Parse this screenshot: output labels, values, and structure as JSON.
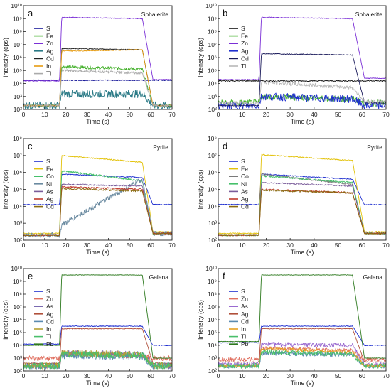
{
  "chart_data": [
    {
      "id": "a",
      "panel_label": "a",
      "mineral_label": "Sphalerite",
      "type": "line",
      "xlabel": "Time  (s)",
      "ylabel": "Intensity (cps)",
      "xlim": [
        0,
        70
      ],
      "ylim_exp": [
        2,
        10
      ],
      "y_scale": "log",
      "x_ticks": [
        "0",
        "10",
        "20",
        "30",
        "40",
        "50",
        "60",
        "70"
      ],
      "y_ticks": [
        "10²",
        "10³",
        "10⁴",
        "10⁵",
        "10⁶",
        "10⁷",
        "10⁸",
        "10⁹",
        "10¹⁰"
      ],
      "legend_position": "top-left",
      "series": [
        {
          "name": "S",
          "color": "#1a1a9a",
          "bg": 4.25,
          "plateau": 4.25,
          "end": 4.25,
          "tail": 4.25,
          "noise": 0.04
        },
        {
          "name": "Fe",
          "color": "#43b02a",
          "bg": 2.3,
          "plateau": 5.3,
          "end": 5.1,
          "tail": 2.3,
          "noise": 0.12
        },
        {
          "name": "Zn",
          "color": "#7b2fd6",
          "bg": 4.2,
          "plateau": 9.1,
          "end": 9.0,
          "tail": 4.3,
          "noise": 0.03
        },
        {
          "name": "Ag",
          "color": "#2a7a86",
          "bg": 2.3,
          "plateau": 3.2,
          "end": 3.2,
          "tail": 2.3,
          "noise": 0.3
        },
        {
          "name": "Cd",
          "color": "#222222",
          "bg": 2.3,
          "plateau": 6.7,
          "end": 6.6,
          "tail": 2.3,
          "noise": 0.03
        },
        {
          "name": "In",
          "color": "#e69b10",
          "bg": 2.3,
          "plateau": 6.5,
          "end": 6.6,
          "tail": 2.3,
          "noise": 0.04
        },
        {
          "name": "Tl",
          "color": "#aaaaaa",
          "bg": 2.3,
          "plateau": 5.0,
          "end": 4.8,
          "tail": 2.3,
          "noise": 0.1
        }
      ]
    },
    {
      "id": "b",
      "panel_label": "b",
      "mineral_label": "Sphalerite",
      "type": "line",
      "xlabel": "Time  (s)",
      "ylabel": "Intensity (cps)",
      "xlim": [
        0,
        70
      ],
      "ylim_exp": [
        2,
        10
      ],
      "y_scale": "log",
      "x_ticks": [
        "0",
        "10",
        "20",
        "30",
        "40",
        "50",
        "60",
        "70"
      ],
      "y_ticks": [
        "10²",
        "10³",
        "10⁴",
        "10⁵",
        "10⁶",
        "10⁷",
        "10⁸",
        "10⁹",
        "10¹⁰"
      ],
      "legend_position": "top-left",
      "series": [
        {
          "name": "S",
          "color": "#111111",
          "bg": 4.2,
          "plateau": 4.2,
          "end": 4.2,
          "tail": 4.2,
          "noise": 0.04
        },
        {
          "name": "Fe",
          "color": "#43b02a",
          "bg": 2.5,
          "plateau": 3.0,
          "end": 2.8,
          "tail": 2.5,
          "noise": 0.25
        },
        {
          "name": "Zn",
          "color": "#7b2fd6",
          "bg": 4.3,
          "plateau": 9.1,
          "end": 9.0,
          "tail": 4.4,
          "noise": 0.03
        },
        {
          "name": "Ag",
          "color": "#1f2fcf",
          "bg": 2.3,
          "plateau": 3.0,
          "end": 2.8,
          "tail": 2.3,
          "noise": 0.3
        },
        {
          "name": "Cd",
          "color": "#1a1a5a",
          "bg": 2.3,
          "plateau": 6.3,
          "end": 6.2,
          "tail": 2.5,
          "noise": 0.03
        },
        {
          "name": "Tl",
          "color": "#b8b8b8",
          "bg": 2.5,
          "plateau": 4.1,
          "end": 3.7,
          "tail": 2.6,
          "noise": 0.15
        }
      ]
    },
    {
      "id": "c",
      "panel_label": "c",
      "mineral_label": "Pyrite",
      "type": "line",
      "xlabel": "Time  (s)",
      "ylabel": "Intensity (cps)",
      "xlim": [
        0,
        70
      ],
      "ylim_exp": [
        2,
        8
      ],
      "y_scale": "log",
      "x_ticks": [
        "0",
        "10",
        "20",
        "30",
        "40",
        "50",
        "60",
        "70"
      ],
      "y_ticks": [
        "10²",
        "10³",
        "10⁴",
        "10⁵",
        "10⁶",
        "10⁷",
        "10⁸"
      ],
      "legend_position": "top-left",
      "series": [
        {
          "name": "S",
          "color": "#1f2fcf",
          "bg": 4.1,
          "plateau": 5.9,
          "end": 5.7,
          "tail": 4.1,
          "noise": 0.03
        },
        {
          "name": "Fe",
          "color": "#e3c20a",
          "bg": 2.4,
          "plateau": 7.0,
          "end": 6.6,
          "tail": 2.5,
          "noise": 0.03
        },
        {
          "name": "Co",
          "color": "#45c06a",
          "bg": 2.3,
          "plateau": 6.1,
          "end": 5.5,
          "tail": 2.4,
          "noise": 0.05
        },
        {
          "name": "Ni",
          "color": "#6a8aa0",
          "bg": 2.3,
          "plateau": 2.9,
          "end": 5.6,
          "tail": 2.4,
          "noise": 0.15
        },
        {
          "name": "As",
          "color": "#7a5c9a",
          "bg": 2.3,
          "plateau": 5.3,
          "end": 5.2,
          "tail": 2.4,
          "noise": 0.04
        },
        {
          "name": "Ag",
          "color": "#c0392b",
          "bg": 2.3,
          "plateau": 5.15,
          "end": 5.0,
          "tail": 2.4,
          "noise": 0.05
        },
        {
          "name": "Cd",
          "color": "#8a6a10",
          "bg": 2.3,
          "plateau": 5.05,
          "end": 4.9,
          "tail": 2.4,
          "noise": 0.05
        }
      ]
    },
    {
      "id": "d",
      "panel_label": "d",
      "mineral_label": "Pyrite",
      "type": "line",
      "xlabel": "Time  (s)",
      "ylabel": "Intensity (cps)",
      "xlim": [
        0,
        70
      ],
      "ylim_exp": [
        2,
        8
      ],
      "y_scale": "log",
      "x_ticks": [
        "0",
        "10",
        "20",
        "30",
        "40",
        "50",
        "60",
        "70"
      ],
      "y_ticks": [
        "10²",
        "10³",
        "10⁴",
        "10⁵",
        "10⁶",
        "10⁷",
        "10⁸"
      ],
      "legend_position": "top-left",
      "series": [
        {
          "name": "S",
          "color": "#1f2fcf",
          "bg": 4.1,
          "plateau": 5.9,
          "end": 5.6,
          "tail": 4.1,
          "noise": 0.03
        },
        {
          "name": "Fe",
          "color": "#e3c20a",
          "bg": 2.4,
          "plateau": 7.05,
          "end": 6.7,
          "tail": 2.5,
          "noise": 0.03
        },
        {
          "name": "Co",
          "color": "#7a7a7a",
          "bg": 2.3,
          "plateau": 5.9,
          "end": 5.3,
          "tail": 2.4,
          "noise": 0.05
        },
        {
          "name": "Ni",
          "color": "#45c06a",
          "bg": 2.3,
          "plateau": 5.8,
          "end": 5.4,
          "tail": 2.4,
          "noise": 0.05
        },
        {
          "name": "As",
          "color": "#7a5c9a",
          "bg": 2.3,
          "plateau": 5.4,
          "end": 5.2,
          "tail": 2.4,
          "noise": 0.04
        },
        {
          "name": "Ag",
          "color": "#c0392b",
          "bg": 2.3,
          "plateau": 5.0,
          "end": 4.8,
          "tail": 2.4,
          "noise": 0.05
        },
        {
          "name": "Cd",
          "color": "#8a6a10",
          "bg": 2.3,
          "plateau": 4.95,
          "end": 4.8,
          "tail": 2.4,
          "noise": 0.05
        }
      ]
    },
    {
      "id": "e",
      "panel_label": "e",
      "mineral_label": "Galena",
      "type": "line",
      "xlabel": "Time  (s)",
      "ylabel": "Intensity (cps)",
      "xlim": [
        0,
        70
      ],
      "ylim_exp": [
        2,
        10
      ],
      "y_scale": "log",
      "x_ticks": [
        "0",
        "10",
        "20",
        "30",
        "40",
        "50",
        "60",
        "70"
      ],
      "y_ticks": [
        "10²",
        "10³",
        "10⁴",
        "10⁵",
        "10⁶",
        "10⁷",
        "10⁸",
        "10⁹",
        "10¹⁰"
      ],
      "legend_position": "left",
      "series": [
        {
          "name": "S",
          "color": "#1f2fcf",
          "bg": 4.1,
          "plateau": 5.5,
          "end": 5.5,
          "tail": 4.0,
          "noise": 0.03
        },
        {
          "name": "Zn",
          "color": "#e07060",
          "bg": 3.0,
          "plateau": 3.3,
          "end": 3.2,
          "tail": 3.0,
          "noise": 0.2
        },
        {
          "name": "As",
          "color": "#7a6ab0",
          "bg": 2.4,
          "plateau": 3.4,
          "end": 3.3,
          "tail": 2.4,
          "noise": 0.25
        },
        {
          "name": "Ag",
          "color": "#b0503a",
          "bg": 2.6,
          "plateau": 5.3,
          "end": 5.3,
          "tail": 2.6,
          "noise": 0.03
        },
        {
          "name": "Cd",
          "color": "#5a8ab0",
          "bg": 2.4,
          "plateau": 3.2,
          "end": 3.1,
          "tail": 2.4,
          "noise": 0.25
        },
        {
          "name": "In",
          "color": "#b5a030",
          "bg": 2.4,
          "plateau": 3.4,
          "end": 3.3,
          "tail": 2.4,
          "noise": 0.25
        },
        {
          "name": "Tl",
          "color": "#4abf6a",
          "bg": 2.4,
          "plateau": 3.3,
          "end": 3.2,
          "tail": 2.4,
          "noise": 0.25
        },
        {
          "name": "Pb",
          "color": "#2e7a1f",
          "bg": 4.0,
          "plateau": 9.5,
          "end": 9.5,
          "tail": 3.0,
          "noise": 0.02
        }
      ]
    },
    {
      "id": "f",
      "panel_label": "f",
      "mineral_label": "Galena",
      "type": "line",
      "xlabel": "Time  (s)",
      "ylabel": "Intensity (cps)",
      "xlim": [
        0,
        70
      ],
      "ylim_exp": [
        2,
        10
      ],
      "y_scale": "log",
      "x_ticks": [
        "0",
        "10",
        "20",
        "30",
        "40",
        "50",
        "60",
        "70"
      ],
      "y_ticks": [
        "10²",
        "10³",
        "10⁴",
        "10⁵",
        "10⁶",
        "10⁷",
        "10⁸",
        "10⁹",
        "10¹⁰"
      ],
      "legend_position": "left",
      "series": [
        {
          "name": "S",
          "color": "#1f2fcf",
          "bg": 4.2,
          "plateau": 5.5,
          "end": 5.5,
          "tail": 4.0,
          "noise": 0.03
        },
        {
          "name": "Zn",
          "color": "#e07060",
          "bg": 2.9,
          "plateau": 3.8,
          "end": 3.6,
          "tail": 2.9,
          "noise": 0.15
        },
        {
          "name": "As",
          "color": "#9a6ad0",
          "bg": 2.5,
          "plateau": 4.1,
          "end": 4.0,
          "tail": 2.5,
          "noise": 0.18
        },
        {
          "name": "Ag",
          "color": "#b0503a",
          "bg": 2.7,
          "plateau": 5.3,
          "end": 5.3,
          "tail": 2.7,
          "noise": 0.03
        },
        {
          "name": "Cd",
          "color": "#5a8ab0",
          "bg": 2.4,
          "plateau": 3.4,
          "end": 3.3,
          "tail": 2.4,
          "noise": 0.2
        },
        {
          "name": "In",
          "color": "#e6a020",
          "bg": 2.4,
          "plateau": 3.7,
          "end": 3.5,
          "tail": 2.4,
          "noise": 0.15
        },
        {
          "name": "Tl",
          "color": "#4abf6a",
          "bg": 2.4,
          "plateau": 3.5,
          "end": 3.3,
          "tail": 2.4,
          "noise": 0.2
        },
        {
          "name": "Pb",
          "color": "#2e7a1f",
          "bg": 4.3,
          "plateau": 9.5,
          "end": 9.5,
          "tail": 3.0,
          "noise": 0.02
        }
      ]
    }
  ]
}
